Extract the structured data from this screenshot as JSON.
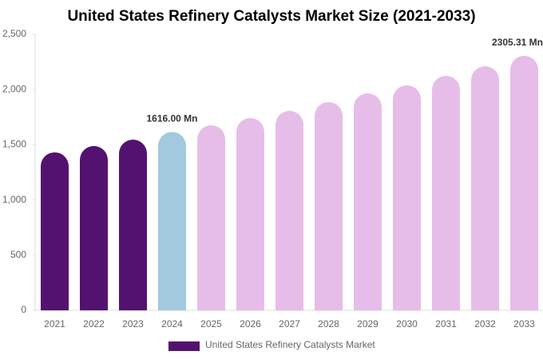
{
  "chart_data": {
    "type": "bar",
    "title": "United States Refinery Catalysts Market Size (2021-2033)",
    "categories": [
      "2021",
      "2022",
      "2023",
      "2024",
      "2025",
      "2026",
      "2027",
      "2028",
      "2029",
      "2030",
      "2031",
      "2032",
      "2033"
    ],
    "series": [
      {
        "name": "United States Refinery Catalysts Market",
        "color": "#541270",
        "values": [
          1431,
          1488,
          1546,
          1616.0,
          1676,
          1741,
          1806,
          1886,
          1965,
          2038,
          2124,
          2211,
          2305.31
        ],
        "value_labels": [
          null,
          null,
          null,
          "1616.00 Mn",
          null,
          null,
          null,
          null,
          null,
          null,
          null,
          null,
          "2305.31 Mn"
        ],
        "colors": [
          "#541270",
          "#541270",
          "#541270",
          "#a3c9de",
          "#e6bde8",
          "#e6bde8",
          "#e6bde8",
          "#e6bde8",
          "#e6bde8",
          "#e6bde8",
          "#e6bde8",
          "#e6bde8",
          "#e6bde8"
        ]
      }
    ],
    "ylim": [
      0,
      2500
    ],
    "yticks": [
      0,
      500,
      {
        "value": 1000,
        "label": "1,000"
      },
      {
        "value": 1500,
        "label": "1,500"
      },
      {
        "value": 2000,
        "label": "2,000"
      },
      {
        "value": 2500,
        "label": "2,500"
      }
    ],
    "grid": false
  }
}
